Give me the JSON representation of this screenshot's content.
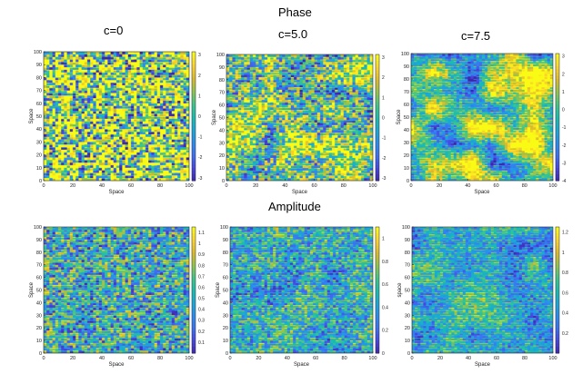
{
  "figure": {
    "row_titles": [
      "Phase",
      "Amplitude"
    ],
    "panel_titles": [
      "c=0",
      "c=5.0",
      "c=7.5"
    ]
  },
  "colors": {
    "colormap": [
      "#3e26a8",
      "#4743e0",
      "#3e6df3",
      "#2c8bf0",
      "#1aa7d9",
      "#19bcb0",
      "#3cc68b",
      "#8cc550",
      "#d8ba2c",
      "#fbd12c",
      "#f9fb14"
    ]
  },
  "chart_data": [
    {
      "type": "heatmap",
      "row": "Phase",
      "title": "c=0",
      "xlabel": "Space",
      "ylabel": "Space",
      "xlim": [
        0,
        100
      ],
      "ylim": [
        0,
        100
      ],
      "xticks": [
        0,
        20,
        40,
        60,
        80,
        100
      ],
      "yticks": [
        0,
        10,
        20,
        30,
        40,
        50,
        60,
        70,
        80,
        90,
        100
      ],
      "clim": [
        -3.14,
        3.14
      ],
      "cticks": [
        3,
        2,
        1,
        0,
        -1,
        -2,
        -3
      ],
      "texture": {
        "seed": 11,
        "smooth": 0.1,
        "bias": 0.35,
        "spread": 1.0
      }
    },
    {
      "type": "heatmap",
      "row": "Phase",
      "title": "c=5.0",
      "xlabel": "Space",
      "ylabel": "Space",
      "xlim": [
        0,
        100
      ],
      "ylim": [
        0,
        100
      ],
      "xticks": [
        0,
        20,
        40,
        60,
        80,
        100
      ],
      "yticks": [
        0,
        10,
        20,
        30,
        40,
        50,
        60,
        70,
        80,
        90,
        100
      ],
      "clim": [
        -3.14,
        3.14
      ],
      "cticks": [
        3,
        2,
        1,
        0,
        -1,
        -2,
        -3
      ],
      "texture": {
        "seed": 23,
        "smooth": 0.45,
        "bias": 0.3,
        "spread": 1.0
      }
    },
    {
      "type": "heatmap",
      "row": "Phase",
      "title": "c=7.5",
      "xlabel": "Space",
      "ylabel": "Space",
      "xlim": [
        0,
        100
      ],
      "ylim": [
        0,
        100
      ],
      "xticks": [
        0,
        20,
        40,
        60,
        80,
        100
      ],
      "yticks": [
        0,
        10,
        20,
        30,
        40,
        50,
        60,
        70,
        80,
        90,
        100
      ],
      "clim": [
        -4,
        3.14
      ],
      "cticks": [
        3,
        2,
        1,
        0,
        -1,
        -2,
        -3,
        -4
      ],
      "texture": {
        "seed": 37,
        "smooth": 0.75,
        "bias": 0.3,
        "spread": 1.0
      }
    },
    {
      "type": "heatmap",
      "row": "Amplitude",
      "title": "",
      "xlabel": "Space",
      "ylabel": "Space",
      "xlim": [
        0,
        100
      ],
      "ylim": [
        0,
        100
      ],
      "xticks": [
        0,
        20,
        40,
        60,
        80,
        100
      ],
      "yticks": [
        0,
        10,
        20,
        30,
        40,
        50,
        60,
        70,
        80,
        90,
        100
      ],
      "clim": [
        0,
        1.15
      ],
      "cticks": [
        1.1,
        1,
        0.9,
        0.8,
        0.7,
        0.6,
        0.5,
        0.4,
        0.3,
        0.2,
        0.1
      ],
      "texture": {
        "seed": 51,
        "smooth": 0.1,
        "bias": -0.15,
        "spread": 0.55
      }
    },
    {
      "type": "heatmap",
      "row": "Amplitude",
      "title": "",
      "xlabel": "Space",
      "ylabel": "Space",
      "xlim": [
        0,
        100
      ],
      "ylim": [
        0,
        100
      ],
      "xticks": [
        0,
        20,
        40,
        60,
        80,
        100
      ],
      "yticks": [
        0,
        10,
        20,
        30,
        40,
        50,
        60,
        70,
        80,
        90,
        100
      ],
      "clim": [
        0,
        1.1
      ],
      "cticks": [
        1,
        0.8,
        0.6,
        0.4,
        0.2,
        0
      ],
      "texture": {
        "seed": 67,
        "smooth": 0.35,
        "bias": -0.15,
        "spread": 0.55
      }
    },
    {
      "type": "heatmap",
      "row": "Amplitude",
      "title": "",
      "xlabel": "Space",
      "ylabel": "space",
      "xlim": [
        0,
        100
      ],
      "ylim": [
        0,
        100
      ],
      "xticks": [
        0,
        20,
        40,
        60,
        80,
        100
      ],
      "yticks": [
        0,
        10,
        20,
        30,
        40,
        50,
        60,
        70,
        80,
        90,
        100
      ],
      "clim": [
        0,
        1.25
      ],
      "cticks": [
        1.2,
        1,
        0.8,
        0.6,
        0.4,
        0.2
      ],
      "texture": {
        "seed": 83,
        "smooth": 0.55,
        "bias": -0.2,
        "spread": 0.55
      }
    }
  ]
}
